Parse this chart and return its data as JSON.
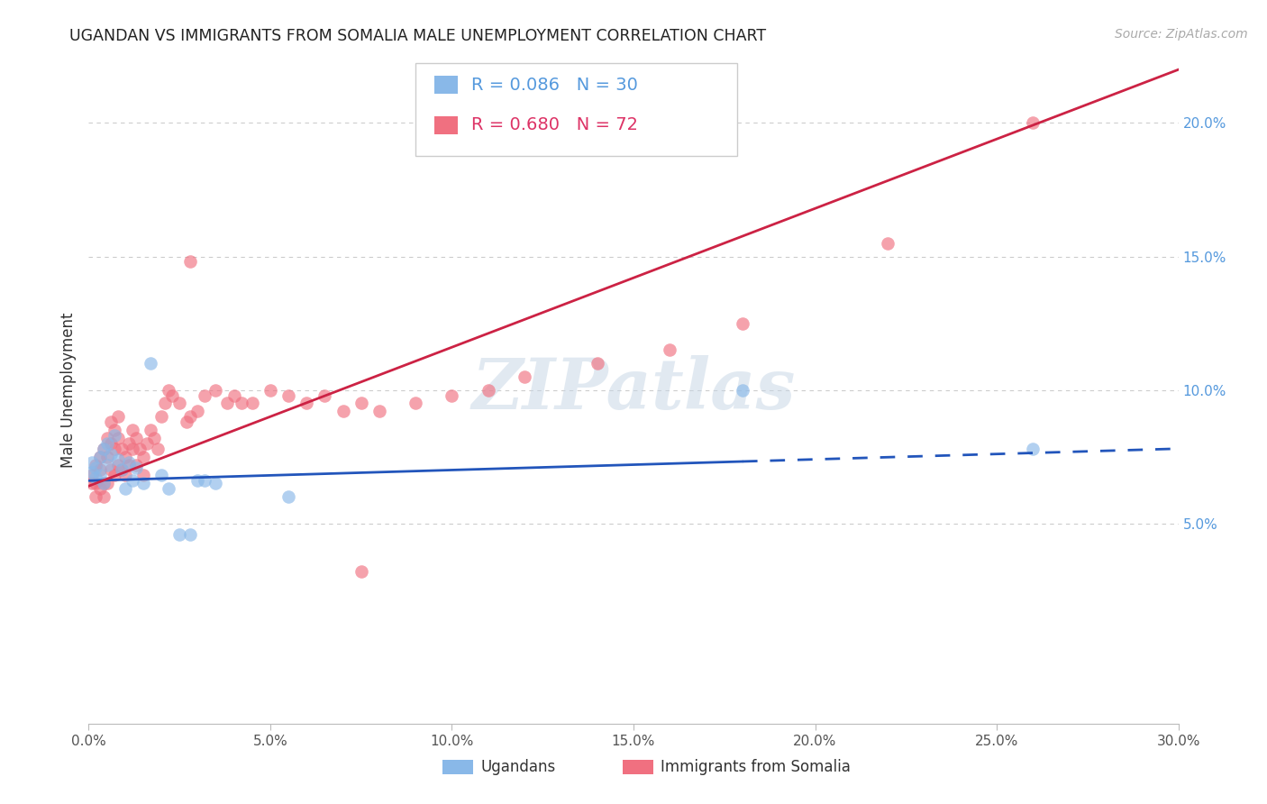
{
  "title": "UGANDAN VS IMMIGRANTS FROM SOMALIA MALE UNEMPLOYMENT CORRELATION CHART",
  "source": "Source: ZipAtlas.com",
  "ylabel": "Male Unemployment",
  "xlim": [
    0.0,
    0.3
  ],
  "ylim": [
    -0.025,
    0.225
  ],
  "right_yticks": [
    0.05,
    0.1,
    0.15,
    0.2
  ],
  "right_yticklabels": [
    "5.0%",
    "10.0%",
    "15.0%",
    "20.0%"
  ],
  "xticks": [
    0.0,
    0.05,
    0.1,
    0.15,
    0.2,
    0.25,
    0.3
  ],
  "xticklabels": [
    "0.0%",
    "5.0%",
    "10.0%",
    "15.0%",
    "20.0%",
    "25.0%",
    "30.0%"
  ],
  "grid_color": "#cccccc",
  "background_color": "#ffffff",
  "ugandan_color": "#89b8e8",
  "somalia_color": "#f07080",
  "ugandan_line_color": "#2255bb",
  "somalia_line_color": "#cc2244",
  "watermark_text": "ZIPatlas",
  "ugandan_label": "Ugandans",
  "somalia_label": "Immigrants from Somalia",
  "ugandan_R": 0.086,
  "somalia_R": 0.68,
  "ugandan_N": 30,
  "somalia_N": 72,
  "legend_box_color": "#dddddd",
  "ugandan_text_color": "#5599dd",
  "somalia_text_color": "#dd3366",
  "ugandan_x": [
    0.001,
    0.001,
    0.002,
    0.002,
    0.003,
    0.003,
    0.004,
    0.004,
    0.005,
    0.005,
    0.006,
    0.007,
    0.008,
    0.009,
    0.01,
    0.011,
    0.012,
    0.013,
    0.015,
    0.017,
    0.02,
    0.022,
    0.025,
    0.028,
    0.03,
    0.032,
    0.035,
    0.055,
    0.18,
    0.26
  ],
  "ugandan_y": [
    0.073,
    0.069,
    0.071,
    0.067,
    0.075,
    0.068,
    0.078,
    0.065,
    0.08,
    0.072,
    0.076,
    0.083,
    0.074,
    0.07,
    0.063,
    0.073,
    0.066,
    0.071,
    0.065,
    0.11,
    0.068,
    0.063,
    0.046,
    0.046,
    0.066,
    0.066,
    0.065,
    0.06,
    0.1,
    0.078
  ],
  "somalia_x": [
    0.001,
    0.001,
    0.002,
    0.002,
    0.002,
    0.003,
    0.003,
    0.003,
    0.004,
    0.004,
    0.004,
    0.005,
    0.005,
    0.005,
    0.006,
    0.006,
    0.006,
    0.007,
    0.007,
    0.007,
    0.008,
    0.008,
    0.008,
    0.009,
    0.009,
    0.01,
    0.01,
    0.011,
    0.011,
    0.012,
    0.012,
    0.013,
    0.013,
    0.014,
    0.015,
    0.015,
    0.016,
    0.017,
    0.018,
    0.019,
    0.02,
    0.021,
    0.022,
    0.023,
    0.025,
    0.027,
    0.028,
    0.03,
    0.032,
    0.035,
    0.038,
    0.04,
    0.042,
    0.045,
    0.05,
    0.055,
    0.06,
    0.065,
    0.07,
    0.075,
    0.08,
    0.09,
    0.1,
    0.11,
    0.12,
    0.14,
    0.16,
    0.18,
    0.22,
    0.26,
    0.028,
    0.075
  ],
  "somalia_y": [
    0.068,
    0.065,
    0.072,
    0.065,
    0.06,
    0.075,
    0.07,
    0.063,
    0.078,
    0.065,
    0.06,
    0.082,
    0.075,
    0.065,
    0.088,
    0.08,
    0.07,
    0.085,
    0.078,
    0.068,
    0.09,
    0.082,
    0.072,
    0.078,
    0.07,
    0.075,
    0.068,
    0.08,
    0.072,
    0.085,
    0.078,
    0.082,
    0.072,
    0.078,
    0.068,
    0.075,
    0.08,
    0.085,
    0.082,
    0.078,
    0.09,
    0.095,
    0.1,
    0.098,
    0.095,
    0.088,
    0.09,
    0.092,
    0.098,
    0.1,
    0.095,
    0.098,
    0.095,
    0.095,
    0.1,
    0.098,
    0.095,
    0.098,
    0.092,
    0.095,
    0.092,
    0.095,
    0.098,
    0.1,
    0.105,
    0.11,
    0.115,
    0.125,
    0.155,
    0.2,
    0.148,
    0.032
  ],
  "ug_line_solid_end": 0.18,
  "ug_line_solid_start": 0.0,
  "ug_line_dash_end": 0.3,
  "so_line_start": 0.0,
  "so_line_end": 0.3
}
